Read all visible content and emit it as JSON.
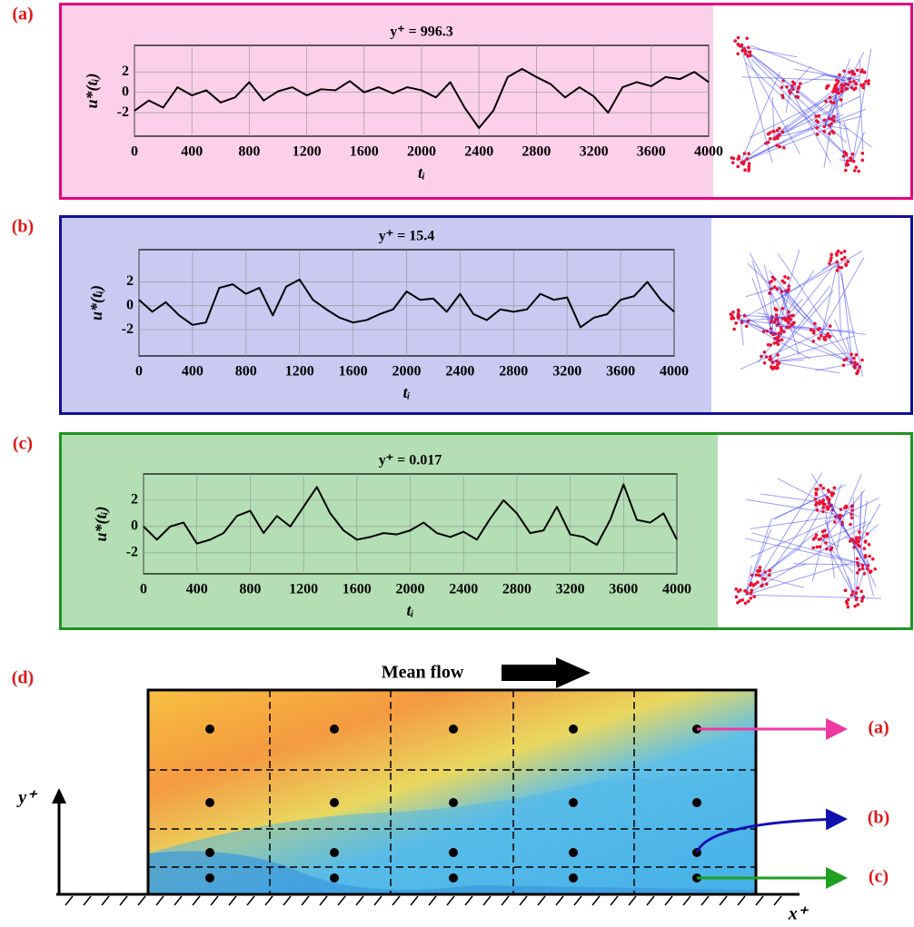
{
  "chart_data": [
    {
      "type": "line",
      "title": "y⁺ = 996.3",
      "xlabel": "tᵢ",
      "ylabel": "u*(tᵢ)",
      "color": "#000000",
      "grid": true,
      "x": [
        0,
        100,
        200,
        300,
        400,
        500,
        600,
        700,
        800,
        900,
        1000,
        1100,
        1200,
        1300,
        1400,
        1500,
        1600,
        1700,
        1800,
        1900,
        2000,
        2100,
        2200,
        2300,
        2400,
        2500,
        2600,
        2700,
        2800,
        2900,
        3000,
        3100,
        3200,
        3300,
        3400,
        3500,
        3600,
        3700,
        3800,
        3900,
        4000
      ],
      "values": [
        -1.8,
        -0.8,
        -1.5,
        0.5,
        -0.3,
        0.2,
        -1.0,
        -0.5,
        1.0,
        -0.8,
        0.1,
        0.5,
        -0.3,
        0.3,
        0.2,
        1.1,
        0.0,
        0.5,
        -0.1,
        0.5,
        0.2,
        -0.5,
        1.0,
        -1.5,
        -3.5,
        -1.8,
        1.5,
        2.3,
        1.5,
        0.8,
        -0.5,
        0.5,
        -0.4,
        -2.0,
        0.5,
        1.0,
        0.6,
        1.5,
        1.3,
        2.0,
        1.0
      ],
      "xlim": [
        0,
        4000
      ],
      "ylim": [
        -4.3,
        4.6
      ],
      "xticks": [
        0,
        400,
        800,
        1200,
        1600,
        2000,
        2400,
        2800,
        3200,
        3600,
        4000
      ],
      "yticks": [
        -2,
        0,
        2
      ]
    },
    {
      "type": "line",
      "title": "y⁺ = 15.4",
      "xlabel": "tᵢ",
      "ylabel": "u*(tᵢ)",
      "color": "#000000",
      "grid": true,
      "x": [
        0,
        100,
        200,
        300,
        400,
        500,
        600,
        700,
        800,
        900,
        1000,
        1100,
        1200,
        1300,
        1400,
        1500,
        1600,
        1700,
        1800,
        1900,
        2000,
        2100,
        2200,
        2300,
        2400,
        2500,
        2600,
        2700,
        2800,
        2900,
        3000,
        3100,
        3200,
        3300,
        3400,
        3500,
        3600,
        3700,
        3800,
        3900,
        4000
      ],
      "values": [
        0.5,
        -0.5,
        0.3,
        -0.8,
        -1.6,
        -1.4,
        1.5,
        1.8,
        1.0,
        1.5,
        -0.8,
        1.6,
        2.2,
        0.5,
        -0.3,
        -1.0,
        -1.4,
        -1.2,
        -0.7,
        -0.3,
        1.2,
        0.5,
        0.6,
        -0.5,
        1.0,
        -0.7,
        -1.2,
        -0.3,
        -0.5,
        -0.3,
        1.0,
        0.5,
        0.7,
        -1.8,
        -1.0,
        -0.7,
        0.5,
        0.8,
        2.0,
        0.5,
        -0.5
      ],
      "xlim": [
        0,
        4000
      ],
      "ylim": [
        -4.2,
        4.7
      ],
      "xticks": [
        0,
        400,
        800,
        1200,
        1600,
        2000,
        2400,
        2800,
        3200,
        3600,
        4000
      ],
      "yticks": [
        -2,
        0,
        2
      ]
    },
    {
      "type": "line",
      "title": "y⁺ = 0.017",
      "xlabel": "tᵢ",
      "ylabel": "u*(tᵢ)",
      "color": "#000000",
      "grid": true,
      "x": [
        0,
        100,
        200,
        300,
        400,
        500,
        600,
        700,
        800,
        900,
        1000,
        1100,
        1200,
        1300,
        1400,
        1500,
        1600,
        1700,
        1800,
        1900,
        2000,
        2100,
        2200,
        2300,
        2400,
        2500,
        2600,
        2700,
        2800,
        2900,
        3000,
        3100,
        3200,
        3300,
        3400,
        3500,
        3600,
        3700,
        3800,
        3900,
        4000
      ],
      "values": [
        0.0,
        -1.0,
        0.0,
        0.3,
        -1.3,
        -1.0,
        -0.5,
        0.8,
        1.2,
        -0.5,
        0.8,
        0.0,
        1.5,
        3.0,
        1.0,
        -0.3,
        -1.0,
        -0.8,
        -0.5,
        -0.6,
        -0.3,
        0.3,
        -0.5,
        -0.8,
        -0.4,
        -1.0,
        0.6,
        2.0,
        1.0,
        -0.5,
        -0.3,
        1.5,
        -0.6,
        -0.8,
        -1.4,
        0.5,
        3.2,
        0.5,
        0.3,
        1.0,
        -1.0
      ],
      "xlim": [
        0,
        4000
      ],
      "ylim": [
        -3.6,
        4.0
      ],
      "xticks": [
        0,
        400,
        800,
        1200,
        1600,
        2000,
        2400,
        2800,
        3200,
        3600,
        4000
      ],
      "yticks": [
        -2,
        0,
        2
      ]
    }
  ],
  "diagram": {
    "panels": [
      "(a)",
      "(b)",
      "(c)",
      "(d)"
    ],
    "mean_flow": "Mean flow",
    "y_axis": "y⁺",
    "x_axis": "x⁺",
    "targets": [
      "(a)",
      "(b)",
      "(c)"
    ]
  }
}
